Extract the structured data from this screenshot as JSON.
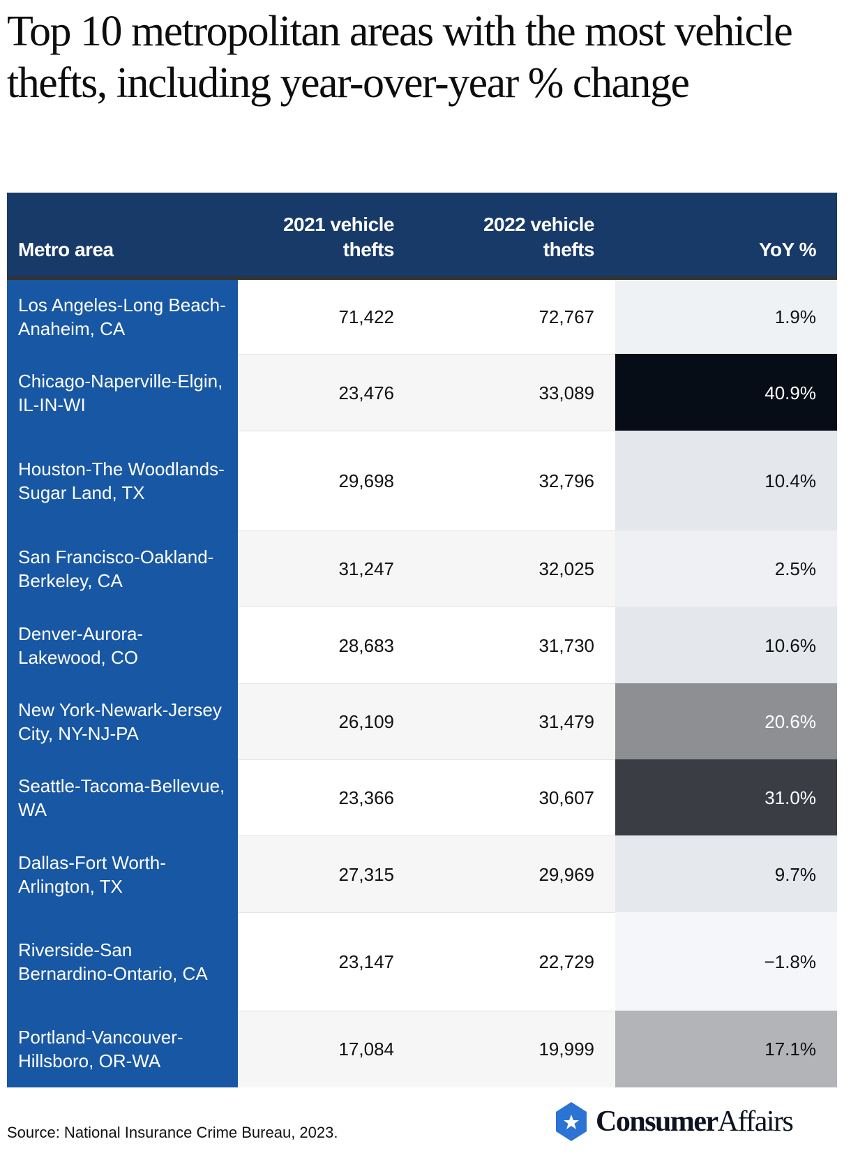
{
  "title": "Top 10 metropolitan areas with the most vehicle thefts, including year-over-year % change",
  "chart_data": {
    "type": "table",
    "columns": [
      "Metro area",
      "2021 vehicle thefts",
      "2022 vehicle thefts",
      "YoY %"
    ],
    "rows": [
      {
        "metro": "Los Angeles-Long Beach-Anaheim, CA",
        "y2021": "71,422",
        "y2022": "72,767",
        "yoy": "1.9%",
        "yoy_color": "#eff2f5",
        "yoy_text": "#111111"
      },
      {
        "metro": "Chicago-Naperville-Elgin, IL-IN-WI",
        "y2021": "23,476",
        "y2022": "33,089",
        "yoy": "40.9%",
        "yoy_color": "#070d17",
        "yoy_text": "#ffffff"
      },
      {
        "metro": "Houston-The Woodlands-Sugar Land, TX",
        "y2021": "29,698",
        "y2022": "32,796",
        "yoy": "10.4%",
        "yoy_color": "#e4e7eb",
        "yoy_text": "#111111"
      },
      {
        "metro": "San Francisco-Oakland-Berkeley, CA",
        "y2021": "31,247",
        "y2022": "32,025",
        "yoy": "2.5%",
        "yoy_color": "#eef0f4",
        "yoy_text": "#111111"
      },
      {
        "metro": "Denver-Aurora-Lakewood, CO",
        "y2021": "28,683",
        "y2022": "31,730",
        "yoy": "10.6%",
        "yoy_color": "#e4e7eb",
        "yoy_text": "#111111"
      },
      {
        "metro": "New York-Newark-Jersey City, NY-NJ-PA",
        "y2021": "26,109",
        "y2022": "31,479",
        "yoy": "20.6%",
        "yoy_color": "#8d8f93",
        "yoy_text": "#ffffff"
      },
      {
        "metro": "Seattle-Tacoma-Bellevue, WA",
        "y2021": "23,366",
        "y2022": "30,607",
        "yoy": "31.0%",
        "yoy_color": "#3a3d44",
        "yoy_text": "#ffffff"
      },
      {
        "metro": "Dallas-Fort Worth-Arlington, TX",
        "y2021": "27,315",
        "y2022": "29,969",
        "yoy": "9.7%",
        "yoy_color": "#e5e8ec",
        "yoy_text": "#111111"
      },
      {
        "metro": "Riverside-San Bernardino-Ontario, CA",
        "y2021": "23,147",
        "y2022": "22,729",
        "yoy": "−1.8%",
        "yoy_color": "#f4f6fa",
        "yoy_text": "#111111"
      },
      {
        "metro": "Portland-Vancouver-Hillsboro, OR-WA",
        "y2021": "17,084",
        "y2022": "19,999",
        "yoy": "17.1%",
        "yoy_color": "#b2b4b7",
        "yoy_text": "#111111"
      }
    ]
  },
  "source": "Source: National Insurance Crime Bureau, 2023.",
  "logo": {
    "bold": "Consumer",
    "regular": "Affairs",
    "icon": "star-hexagon-icon",
    "color": "#2c74d3"
  },
  "colors": {
    "header": "#173a69",
    "metro_column": "#1857a4"
  }
}
